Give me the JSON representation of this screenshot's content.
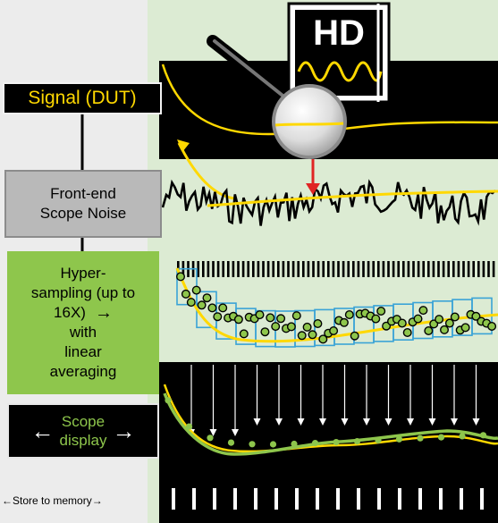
{
  "hd_badge": "HD",
  "labels": {
    "signal": "Signal (DUT)",
    "noise_line1": "Front-end",
    "noise_line2": "Scope Noise",
    "hyper_line1": "Hyper-",
    "hyper_line2": "sampling (up to",
    "hyper_line3": "16X)",
    "hyper_arrow": "→",
    "hyper_line4": "with",
    "hyper_line5": "linear",
    "hyper_line6": "averaging",
    "display_left_arrow": "←",
    "display_line1": "Scope",
    "display_line2": "display",
    "display_right_arrow": "→",
    "store": "←Store to memory→"
  },
  "colors": {
    "panel_green": "#dcebd3",
    "box_green": "#8ec64c",
    "signal_yellow": "#ffd800",
    "averaged_green": "#8ec64c",
    "sample_box_blue": "#3aa3d6",
    "noise_arrow_red": "#e02424"
  },
  "icons": [
    "magnifying-glass-icon",
    "arrow-down-icon"
  ]
}
